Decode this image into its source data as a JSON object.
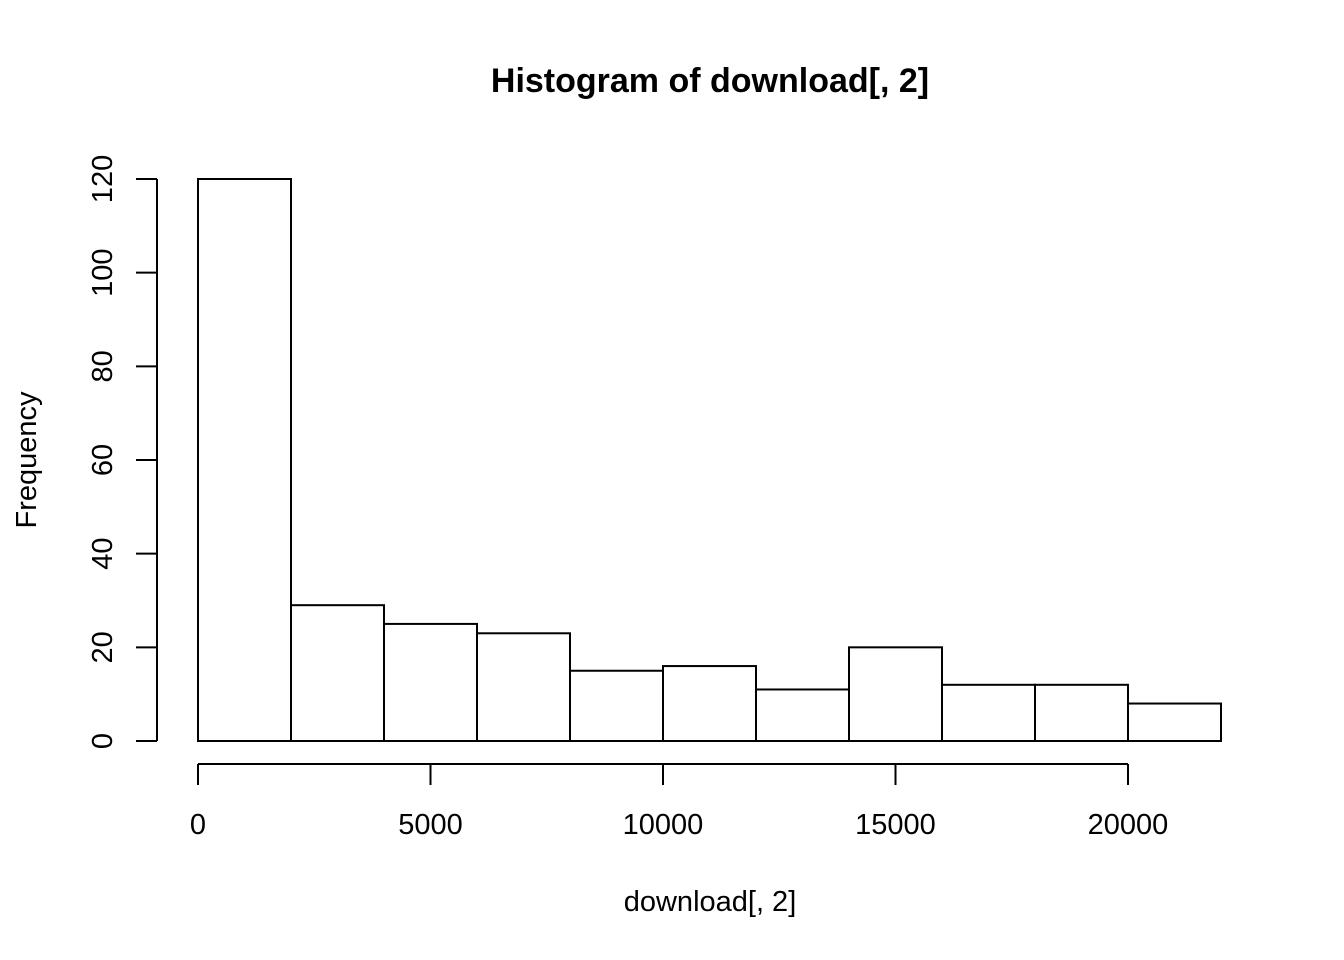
{
  "chart_data": {
    "type": "bar",
    "title": "Histogram of download[, 2]",
    "xlabel": "download[, 2]",
    "ylabel": "Frequency",
    "bin_edges": [
      0,
      2000,
      4000,
      6000,
      8000,
      10000,
      12000,
      14000,
      16000,
      18000,
      20000,
      22000
    ],
    "values": [
      120,
      29,
      25,
      23,
      15,
      16,
      11,
      20,
      12,
      12,
      8
    ],
    "xlim": [
      0,
      22000
    ],
    "ylim": [
      0,
      120
    ],
    "x_ticks": [
      0,
      5000,
      10000,
      15000,
      20000
    ],
    "x_tick_labels": [
      "0",
      "5000",
      "10000",
      "15000",
      "20000"
    ],
    "y_ticks": [
      0,
      20,
      40,
      60,
      80,
      100,
      120
    ],
    "y_tick_labels": [
      "0",
      "20",
      "40",
      "60",
      "80",
      "100",
      "120"
    ],
    "grid": false,
    "legend": "none",
    "colors": {
      "bar_fill": "#ffffff",
      "bar_stroke": "#000000"
    }
  }
}
